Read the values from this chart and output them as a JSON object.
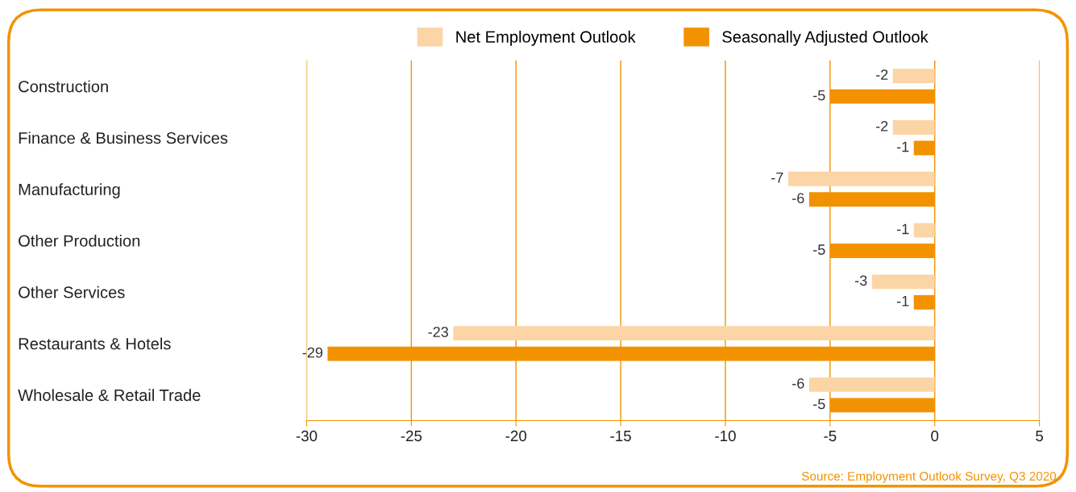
{
  "chart_data": {
    "type": "bar",
    "orientation": "horizontal",
    "categories": [
      "Construction",
      "Finance & Business Services",
      "Manufacturing",
      "Other Production",
      "Other Services",
      "Restaurants & Hotels",
      "Wholesale & Retail Trade"
    ],
    "series": [
      {
        "name": "Net Employment Outlook",
        "color": "#fcd5a6",
        "values": [
          -2,
          -2,
          -7,
          -1,
          -3,
          -23,
          -6
        ]
      },
      {
        "name": "Seasonally Adjusted Outlook",
        "color": "#f39200",
        "values": [
          -5,
          -1,
          -6,
          -5,
          -1,
          -29,
          -5
        ]
      }
    ],
    "xlim": [
      -30,
      5
    ],
    "xticks": [
      -30,
      -25,
      -20,
      -15,
      -10,
      -5,
      0,
      5
    ],
    "grid": "x",
    "legend": "top",
    "data_labels": true,
    "annotations": [
      "Source: Employment Outlook Survey, Q3 2020."
    ]
  }
}
